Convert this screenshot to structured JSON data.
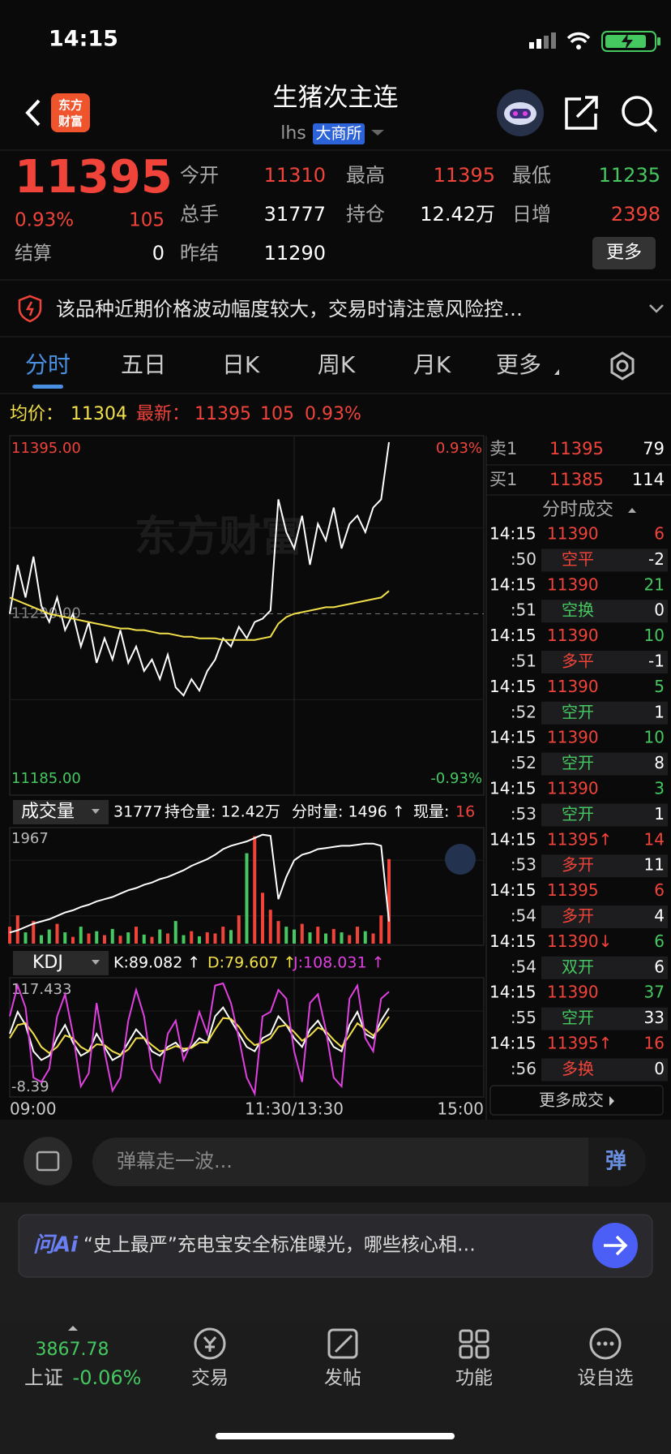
{
  "status_bar": {
    "time": "14:15"
  },
  "header": {
    "logo": [
      "东方",
      "财富"
    ],
    "title": "生猪次主连",
    "code": "lhs",
    "exchange": "大商所"
  },
  "quote": {
    "price": 11395,
    "change_pct": "0.93%",
    "change": 105,
    "settle_label": "结算",
    "settle": 0,
    "fields": [
      {
        "label": "今开",
        "value": 11310,
        "color": "#f0443a"
      },
      {
        "label": "最高",
        "value": 11395,
        "color": "#f0443a"
      },
      {
        "label": "最低",
        "value": 11235,
        "color": "#45c860"
      },
      {
        "label": "总手",
        "value": 31777,
        "color": "#ffffff"
      },
      {
        "label": "持仓",
        "value": "12.42万",
        "color": "#ffffff"
      },
      {
        "label": "日增",
        "value": 2398,
        "color": "#f0443a"
      },
      {
        "label": "昨结",
        "value": 11290,
        "color": "#ffffff"
      }
    ],
    "more": "更多"
  },
  "notice": "该品种近期价格波动幅度较大，交易时请注意风险控…",
  "tabs": [
    "分时",
    "五日",
    "日K",
    "周K",
    "月K",
    "更多"
  ],
  "price_info": {
    "avg_label": "均价：",
    "avg": 11304,
    "last_label": "最新：",
    "last": 11395,
    "change": 105,
    "change_pct": "0.93%"
  },
  "chart_data": [
    {
      "type": "line",
      "watermark": "东方财富",
      "xlim": [
        0,
        60
      ],
      "xticks": [
        {
          "value": 0,
          "label": "09:00"
        },
        {
          "value": 36,
          "label": "11:30/13:30"
        },
        {
          "value": 60,
          "label": "15:00"
        }
      ],
      "ylim": [
        11185,
        11395
      ],
      "yticks": [
        {
          "value": 11395,
          "label": "11395.00"
        },
        {
          "value": 11290,
          "label": "11290.00"
        },
        {
          "value": 11185,
          "label": "11185.00"
        }
      ],
      "y2lim": [
        -0.93,
        0.93
      ],
      "y2ticks": [
        {
          "value": 0.93,
          "label": "0.93%"
        },
        {
          "value": -0.93,
          "label": "-0.93%"
        }
      ],
      "series": [
        {
          "color": "#ffffff",
          "values": [
            11290,
            11320,
            11300,
            11325,
            11295,
            11285,
            11300,
            11280,
            11290,
            11270,
            11285,
            11260,
            11275,
            11262,
            11280,
            11260,
            11270,
            11255,
            11262,
            11250,
            11265,
            11245,
            11240,
            11250,
            11243,
            11255,
            11262,
            11275,
            11270,
            11282,
            11275,
            11285,
            11287,
            11292,
            11360,
            11340,
            11330,
            11350,
            11320,
            11345,
            11335,
            11355,
            11330,
            11345,
            11350,
            11340,
            11355,
            11360,
            11395
          ]
        },
        {
          "color": "#f2e04a",
          "values": [
            11300,
            11298,
            11296,
            11294,
            11292,
            11290,
            11289,
            11288,
            11287,
            11286,
            11285,
            11284,
            11283,
            11282,
            11281,
            11281,
            11280,
            11280,
            11279,
            11278,
            11278,
            11277,
            11276,
            11276,
            11275,
            11275,
            11275,
            11274,
            11274,
            11274,
            11274,
            11274,
            11275,
            11276,
            11284,
            11288,
            11290,
            11291,
            11292,
            11293,
            11294,
            11294,
            11295,
            11296,
            11297,
            11298,
            11299,
            11300,
            11304
          ]
        }
      ]
    },
    {
      "type": "bar",
      "title": "成交量",
      "header_items": [
        {
          "text": "31777",
          "color": "#ffffff"
        },
        {
          "text": "持仓量: 12.42万",
          "color": "#ffffff"
        },
        {
          "text": "分时量: 1496 ↑",
          "color": "#ffffff"
        },
        {
          "text": "现量:",
          "color": "#ffffff"
        },
        {
          "text": "16",
          "color": "#f0443a"
        }
      ],
      "xlim": [
        0,
        60
      ],
      "ylim": [
        0,
        1967
      ],
      "yticks": [
        1967
      ],
      "up_color": "#f0443a",
      "down_color": "#45c860",
      "values": [
        300,
        500,
        200,
        400,
        150,
        250,
        350,
        200,
        120,
        300,
        180,
        220,
        150,
        260,
        140,
        200,
        300,
        160,
        120,
        250,
        180,
        400,
        150,
        220,
        130,
        200,
        180,
        300,
        240,
        500,
        1600,
        1900,
        900,
        600,
        400,
        300,
        250,
        350,
        200,
        300,
        180,
        260,
        200,
        150,
        300,
        220,
        180,
        500,
        1496
      ],
      "y2lim": [
        0,
        100
      ],
      "line": {
        "color": "#ffffff",
        "values": [
          10,
          12,
          15,
          18,
          20,
          22,
          25,
          28,
          30,
          33,
          35,
          38,
          40,
          42,
          45,
          48,
          50,
          53,
          55,
          58,
          60,
          63,
          66,
          70,
          73,
          76,
          80,
          85,
          88,
          90,
          92,
          95,
          98,
          97,
          40,
          60,
          75,
          80,
          82,
          85,
          86,
          87,
          88,
          88,
          89,
          90,
          90,
          88,
          20
        ]
      }
    },
    {
      "type": "line",
      "title": "KDJ",
      "xlim": [
        0,
        60
      ],
      "ylim": [
        -8.39,
        117.433
      ],
      "yticks": [
        117.433,
        -8.39
      ],
      "series": [
        {
          "name": "K:89.082 ↑",
          "color": "#ffffff",
          "values": [
            60,
            85,
            70,
            40,
            30,
            35,
            55,
            70,
            50,
            35,
            40,
            60,
            45,
            30,
            35,
            50,
            65,
            55,
            40,
            35,
            45,
            50,
            40,
            45,
            55,
            50,
            80,
            90,
            75,
            60,
            45,
            40,
            55,
            60,
            80,
            70,
            55,
            45,
            65,
            75,
            60,
            45,
            40,
            70,
            85,
            60,
            55,
            75,
            89.082
          ]
        },
        {
          "name": "D:79.607 ↑",
          "color": "#f2e04a",
          "values": [
            55,
            70,
            72,
            60,
            45,
            38,
            45,
            58,
            55,
            45,
            40,
            48,
            47,
            40,
            36,
            42,
            55,
            55,
            47,
            40,
            42,
            46,
            43,
            44,
            50,
            50,
            65,
            78,
            77,
            68,
            55,
            47,
            50,
            55,
            68,
            70,
            62,
            52,
            58,
            67,
            63,
            53,
            45,
            58,
            72,
            65,
            58,
            67,
            79.607
          ]
        },
        {
          "name": "J:108.031 ↑",
          "color": "#e040e0",
          "values": [
            80,
            115,
            90,
            10,
            5,
            20,
            80,
            105,
            60,
            0,
            15,
            95,
            40,
            -5,
            10,
            75,
            110,
            80,
            20,
            5,
            60,
            75,
            30,
            50,
            85,
            60,
            115,
            117.433,
            95,
            55,
            10,
            -8.39,
            80,
            85,
            110,
            100,
            40,
            5,
            95,
            105,
            65,
            10,
            0,
            100,
            115,
            55,
            40,
            100,
            108.031
          ]
        }
      ]
    }
  ],
  "order_book": [
    {
      "label": "卖1",
      "price": 11395,
      "volume": 79
    },
    {
      "label": "买1",
      "price": 11385,
      "volume": 114
    }
  ],
  "trades_title": "分时成交",
  "trades": [
    {
      "time": "14:15",
      "price": "11390",
      "volume": 6,
      "volume_color": "#f0443a",
      "second": ":50",
      "kind": "空平",
      "kind_color": "#f0443a",
      "oi_change": -2
    },
    {
      "time": "14:15",
      "price": "11390",
      "volume": 21,
      "volume_color": "#45c860",
      "second": ":51",
      "kind": "空换",
      "kind_color": "#45c860",
      "oi_change": 0
    },
    {
      "time": "14:15",
      "price": "11390",
      "volume": 10,
      "volume_color": "#45c860",
      "second": ":51",
      "kind": "多平",
      "kind_color": "#f0443a",
      "oi_change": -1
    },
    {
      "time": "14:15",
      "price": "11390",
      "volume": 5,
      "volume_color": "#45c860",
      "second": ":52",
      "kind": "空开",
      "kind_color": "#45c860",
      "oi_change": 1
    },
    {
      "time": "14:15",
      "price": "11390",
      "volume": 10,
      "volume_color": "#45c860",
      "second": ":52",
      "kind": "空开",
      "kind_color": "#45c860",
      "oi_change": 8
    },
    {
      "time": "14:15",
      "price": "11390",
      "volume": 3,
      "volume_color": "#45c860",
      "second": ":53",
      "kind": "空开",
      "kind_color": "#45c860",
      "oi_change": 1
    },
    {
      "time": "14:15",
      "price": "11395↑",
      "volume": 14,
      "volume_color": "#f0443a",
      "second": ":53",
      "kind": "多开",
      "kind_color": "#f0443a",
      "oi_change": 11
    },
    {
      "time": "14:15",
      "price": "11395",
      "volume": 6,
      "volume_color": "#f0443a",
      "second": ":54",
      "kind": "多开",
      "kind_color": "#f0443a",
      "oi_change": 4
    },
    {
      "time": "14:15",
      "price": "11390↓",
      "volume": 6,
      "volume_color": "#45c860",
      "second": ":54",
      "kind": "双开",
      "kind_color": "#45c860",
      "oi_change": 6
    },
    {
      "time": "14:15",
      "price": "11390",
      "volume": 37,
      "volume_color": "#45c860",
      "second": ":55",
      "kind": "空开",
      "kind_color": "#45c860",
      "oi_change": 33
    },
    {
      "time": "14:15",
      "price": "11395↑",
      "volume": 16,
      "volume_color": "#f0443a",
      "second": ":56",
      "kind": "多换",
      "kind_color": "#f0443a",
      "oi_change": 0
    }
  ],
  "more_trades": "更多成交",
  "comment_bar": {
    "placeholder": "弹幕走一波...",
    "button": "弹"
  },
  "ai_banner": {
    "brand": "问Ai",
    "text": "“史上最严”充电宝安全标准曝光，哪些核心相…"
  },
  "tab_bar": {
    "index": {
      "value": 3867.78,
      "name": "上证",
      "change": "-0.06%"
    },
    "items": [
      "交易",
      "发帖",
      "功能",
      "设自选"
    ]
  }
}
